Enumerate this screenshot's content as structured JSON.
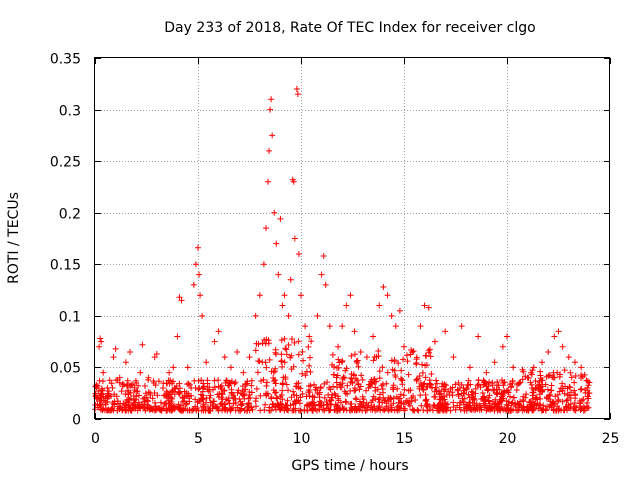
{
  "chart_data": {
    "type": "scatter",
    "title": "Day 233 of 2018, Rate Of TEC Index for receiver clgo",
    "xlabel": "GPS time / hours",
    "ylabel": "ROTI / TECUs",
    "xlim": [
      0,
      25
    ],
    "ylim": [
      0,
      0.35
    ],
    "xticks": [
      0,
      5,
      10,
      15,
      20,
      25
    ],
    "yticks": [
      0,
      0.05,
      0.1,
      0.15,
      0.2,
      0.25,
      0.3,
      0.35
    ],
    "xtick_labels": [
      "0",
      "5",
      "10",
      "15",
      "20",
      "25"
    ],
    "ytick_labels": [
      "0",
      "0.05",
      "0.1",
      "0.15",
      "0.2",
      "0.25",
      "0.3",
      "0.35"
    ],
    "grid": true,
    "marker": "+",
    "color": "#ff0000",
    "series": [
      {
        "name": "ROTI",
        "points": [
          [
            0.1,
            0.02
          ],
          [
            0.2,
            0.07
          ],
          [
            0.25,
            0.078
          ],
          [
            0.3,
            0.075
          ],
          [
            0.4,
            0.045
          ],
          [
            0.6,
            0.03
          ],
          [
            0.9,
            0.06
          ],
          [
            1.0,
            0.068
          ],
          [
            1.2,
            0.04
          ],
          [
            1.5,
            0.055
          ],
          [
            1.7,
            0.065
          ],
          [
            2.0,
            0.035
          ],
          [
            2.2,
            0.045
          ],
          [
            2.3,
            0.072
          ],
          [
            2.6,
            0.04
          ],
          [
            2.9,
            0.06
          ],
          [
            3.0,
            0.063
          ],
          [
            3.3,
            0.03
          ],
          [
            3.6,
            0.045
          ],
          [
            3.8,
            0.05
          ],
          [
            4.0,
            0.08
          ],
          [
            4.1,
            0.118
          ],
          [
            4.2,
            0.115
          ],
          [
            4.5,
            0.05
          ],
          [
            4.8,
            0.13
          ],
          [
            4.9,
            0.15
          ],
          [
            5.0,
            0.166
          ],
          [
            5.05,
            0.14
          ],
          [
            5.1,
            0.12
          ],
          [
            5.2,
            0.1
          ],
          [
            5.4,
            0.055
          ],
          [
            5.8,
            0.075
          ],
          [
            6.0,
            0.085
          ],
          [
            6.3,
            0.06
          ],
          [
            6.6,
            0.05
          ],
          [
            6.9,
            0.065
          ],
          [
            7.2,
            0.045
          ],
          [
            7.5,
            0.06
          ],
          [
            7.8,
            0.1
          ],
          [
            8.0,
            0.12
          ],
          [
            8.2,
            0.15
          ],
          [
            8.3,
            0.185
          ],
          [
            8.4,
            0.23
          ],
          [
            8.45,
            0.26
          ],
          [
            8.5,
            0.3
          ],
          [
            8.55,
            0.31
          ],
          [
            8.6,
            0.275
          ],
          [
            8.7,
            0.2
          ],
          [
            8.8,
            0.17
          ],
          [
            8.9,
            0.14
          ],
          [
            9.0,
            0.194
          ],
          [
            9.1,
            0.11
          ],
          [
            9.2,
            0.12
          ],
          [
            9.4,
            0.1
          ],
          [
            9.5,
            0.135
          ],
          [
            9.6,
            0.232
          ],
          [
            9.65,
            0.23
          ],
          [
            9.7,
            0.175
          ],
          [
            9.8,
            0.32
          ],
          [
            9.85,
            0.315
          ],
          [
            9.9,
            0.16
          ],
          [
            10.0,
            0.12
          ],
          [
            10.2,
            0.09
          ],
          [
            10.4,
            0.08
          ],
          [
            10.8,
            0.1
          ],
          [
            11.0,
            0.14
          ],
          [
            11.1,
            0.158
          ],
          [
            11.2,
            0.13
          ],
          [
            11.4,
            0.09
          ],
          [
            11.8,
            0.07
          ],
          [
            12.0,
            0.09
          ],
          [
            12.2,
            0.11
          ],
          [
            12.4,
            0.12
          ],
          [
            12.6,
            0.085
          ],
          [
            12.9,
            0.065
          ],
          [
            13.2,
            0.06
          ],
          [
            13.5,
            0.08
          ],
          [
            13.8,
            0.11
          ],
          [
            14.0,
            0.128
          ],
          [
            14.2,
            0.12
          ],
          [
            14.4,
            0.1
          ],
          [
            14.6,
            0.09
          ],
          [
            14.8,
            0.105
          ],
          [
            15.0,
            0.07
          ],
          [
            15.4,
            0.065
          ],
          [
            15.8,
            0.09
          ],
          [
            16.0,
            0.11
          ],
          [
            16.2,
            0.108
          ],
          [
            16.5,
            0.075
          ],
          [
            17.0,
            0.085
          ],
          [
            17.4,
            0.06
          ],
          [
            17.8,
            0.09
          ],
          [
            18.2,
            0.05
          ],
          [
            18.6,
            0.08
          ],
          [
            19.0,
            0.045
          ],
          [
            19.4,
            0.055
          ],
          [
            19.8,
            0.07
          ],
          [
            20.0,
            0.08
          ],
          [
            20.3,
            0.05
          ],
          [
            20.6,
            0.035
          ],
          [
            21.0,
            0.04
          ],
          [
            21.3,
            0.05
          ],
          [
            21.7,
            0.055
          ],
          [
            22.0,
            0.065
          ],
          [
            22.3,
            0.08
          ],
          [
            22.5,
            0.085
          ],
          [
            22.7,
            0.07
          ],
          [
            23.0,
            0.06
          ],
          [
            23.3,
            0.055
          ],
          [
            23.6,
            0.05
          ],
          [
            23.9,
            0.03
          ],
          [
            24.0,
            0.025
          ]
        ]
      }
    ]
  }
}
